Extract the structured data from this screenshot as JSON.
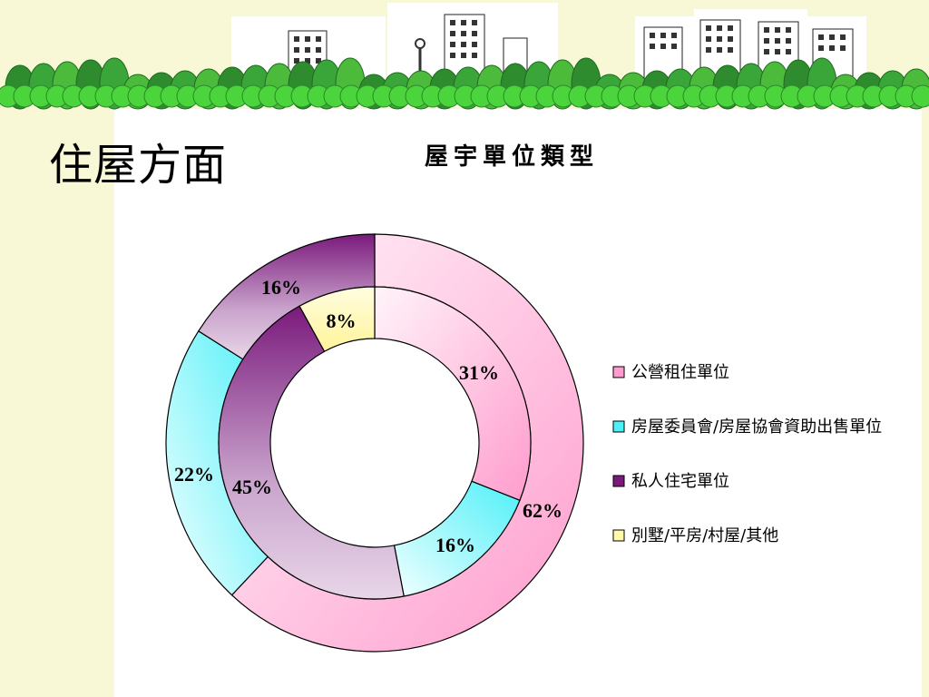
{
  "slide": {
    "title": "住屋方面"
  },
  "colors": {
    "background": "#f8f8d6",
    "panel": "#ffffff"
  },
  "chart_data": {
    "type": "donut",
    "title": "屋宇單位類型",
    "legend_position": "right",
    "categories": [
      "公營租住單位",
      "房屋委員會/房屋協會資助出售單位",
      "私人住宅單位",
      "別墅/平房/村屋/其他"
    ],
    "colors": [
      "#ff9ccd",
      "#4ef0f8",
      "#7a1a7c",
      "#fff9a8"
    ],
    "series": [
      {
        "ring": "outer",
        "values": [
          62,
          22,
          16,
          0
        ],
        "labels": [
          "62%",
          "22%",
          "16%",
          ""
        ]
      },
      {
        "ring": "inner",
        "values": [
          31,
          16,
          45,
          8
        ],
        "labels": [
          "31%",
          "16%",
          "45%",
          "8%"
        ]
      }
    ]
  }
}
